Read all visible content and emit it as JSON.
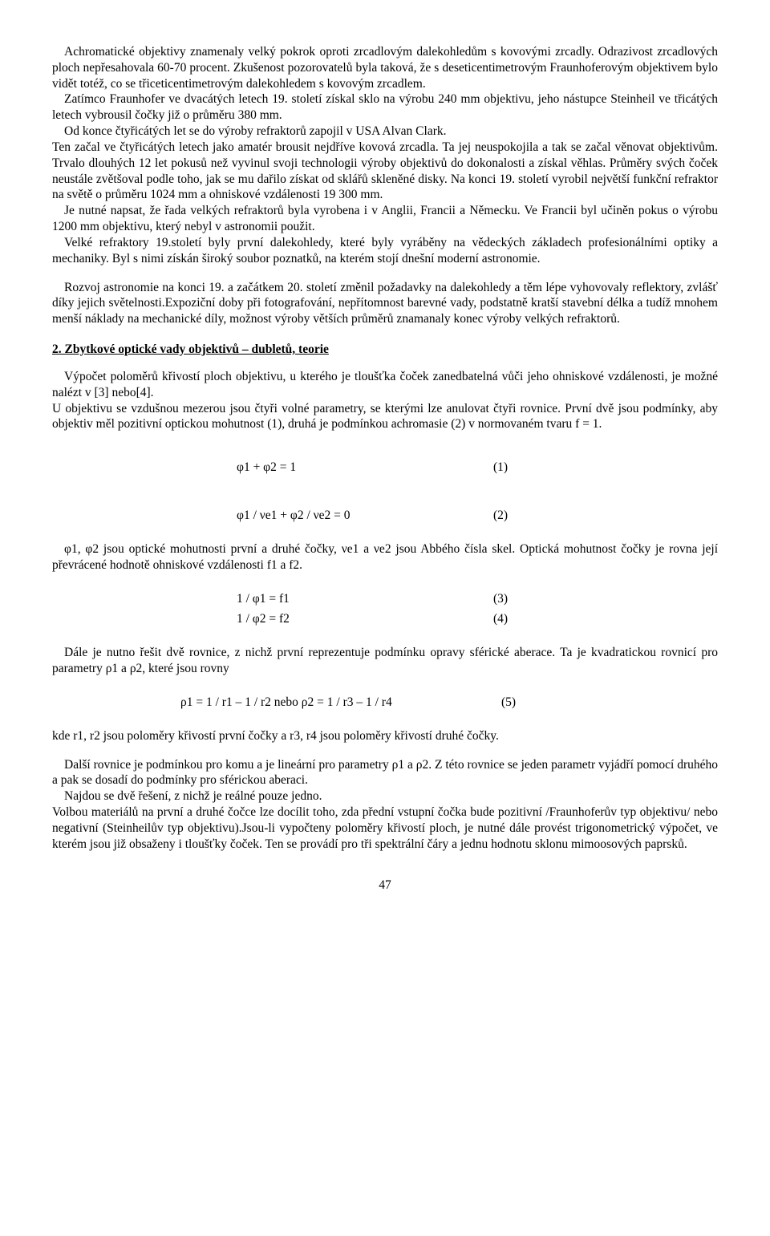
{
  "font": {
    "family": "Times New Roman",
    "size_pt": 12,
    "color": "#000000"
  },
  "page": {
    "number": "47",
    "background": "#ffffff"
  },
  "para1": "Achromatické objektivy znamenaly velký pokrok oproti zrcadlovým dalekohledům s kovovými zrcadly. Odrazivost zrcadlových ploch nepřesahovala 60-70 procent. Zkušenost pozorovatelů byla taková, že s deseticentimetrovým Fraunhoferovým objektivem bylo vidět totéž, co se třiceticentimetrovým dalekohledem s kovovým zrcadlem.",
  "para2": "Zatímco Fraunhofer ve dvacátých letech 19. století získal sklo na výrobu 240 mm objektivu, jeho nástupce Steinheil ve třicátých letech vybrousil čočky již o průměru 380 mm.",
  "para3": "Od konce čtyřicátých let se do výroby refraktorů zapojil v USA Alvan Clark.",
  "para4": "Ten začal ve čtyřicátých letech jako amatér brousit nejdříve kovová zrcadla. Ta jej neuspokojila a tak se začal věnovat objektivům. Trvalo dlouhých 12 let pokusů než vyvinul svoji technologii výroby objektivů do dokonalosti a získal věhlas. Průměry svých čoček neustále zvětšoval podle toho, jak se mu dařilo získat od sklářů skleněné disky. Na konci 19. století vyrobil největší funkční refraktor na světě o průměru 1024 mm a ohniskové vzdálenosti 19 300 mm.",
  "para5": "Je nutné napsat, že řada velkých refraktorů byla vyrobena i v Anglii, Francii a Německu. Ve Francii byl učiněn pokus o výrobu 1200 mm objektivu, který nebyl v astronomii použit.",
  "para6": "Velké refraktory 19.století byly první dalekohledy, které byly vyráběny na vědeckých základech profesionálními optiky a mechaniky. Byl s nimi získán široký soubor poznatků, na kterém stojí dnešní moderní astronomie.",
  "para7": "Rozvoj astronomie na konci 19. a začátkem 20. století změnil požadavky na dalekohledy a těm lépe vyhovovaly reflektory, zvlášť díky jejich světelnosti.Expoziční doby při fotografování, nepřítomnost barevné vady, podstatně kratší stavební délka a tudíž mnohem menší náklady na mechanické díly, možnost výroby větších průměrů znamanaly konec výroby velkých refraktorů.",
  "section2_title": "2. Zbytkové optické vady objektivů – dubletů, teorie",
  "para8": "Výpočet poloměrů křivostí ploch objektivu, u kterého je tloušťka čoček zanedbatelná vůči jeho ohniskové vzdálenosti, je možné nalézt v [3] nebo[4].",
  "para9": "U objektivu se vzdušnou mezerou jsou čtyři volné parametry, se kterými lze anulovat čtyři rovnice. První dvě jsou podmínky, aby objektiv měl pozitivní optickou mohutnost (1), druhá je podmínkou achromasie (2) v normovaném tvaru f = 1.",
  "eq1": "φ1  +   φ2 = 1",
  "eq1n": "(1)",
  "eq2": "φ1 / νe1  +   φ2 / νe2  =  0",
  "eq2n": "(2)",
  "para10": "φ1, φ2 jsou optické mohutnosti první a druhé čočky, νe1 a νe2 jsou Abbého čísla skel. Optická mohutnost čočky je rovna její převrácené hodnotě ohniskové vzdálenosti f1 a f2.",
  "eq3": "1 / φ1  =  f1",
  "eq3n": "(3)",
  "eq4": "1 / φ2  =  f2",
  "eq4n": "(4)",
  "para11": "Dále je nutno řešit dvě rovnice, z nichž první reprezentuje podmínku opravy sférické aberace. Ta je kvadratickou rovnicí pro parametry ρ1 a  ρ2, které jsou rovny",
  "eq5": "ρ1  =  1 / r1 – 1 / r2     nebo    ρ2 = 1 / r3   –  1 / r4",
  "eq5n": "(5)",
  "para12": "kde r1, r2 jsou poloměry křivostí první čočky a r3, r4 jsou poloměry křivostí druhé čočky.",
  "para13": "Další rovnice je podmínkou pro komu a je lineární pro parametry  ρ1 a  ρ2. Z této rovnice se jeden parametr vyjádří pomocí druhého a pak se dosadí do podmínky pro sférickou aberaci.",
  "para14": "Najdou se dvě řešení, z nichž je reálné pouze jedno.",
  "para15": "Volbou materiálů na první a druhé čočce lze docílit toho, zda přední vstupní čočka bude pozitivní /Fraunhoferův typ objektivu/ nebo negativní (Steinheilův typ objektivu).Jsou-li vypočteny poloměry křivostí ploch, je nutné dále provést trigonometrický výpočet, ve kterém jsou již obsaženy i tloušťky čoček. Ten se provádí pro tři spektrální čáry a  jednu hodnotu sklonu mimoosových  paprsků."
}
